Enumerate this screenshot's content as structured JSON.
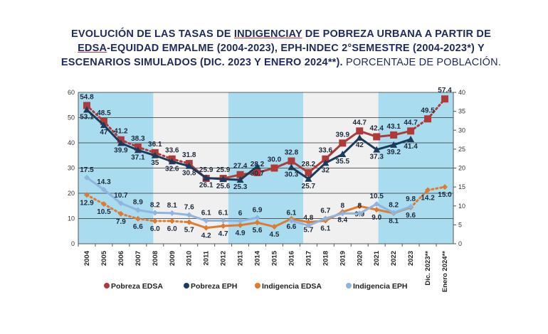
{
  "title": {
    "line1": "EVOLUCIÓN DE LAS TASAS DE ",
    "line1_u": "INDIGENCIAY",
    "line1_rest": " DE POBREZA URBANA A PARTIR DE",
    "line2_u": "EDSA",
    "line2_rest": "-EQUIDAD EMPALME (2004-2023), EPH-INDEC 2°SEMESTRE (2004-2023*) Y",
    "line3": "ESCENARIOS SIMULADOS (DIC. 2023 Y ENERO 2024**).",
    "line3_light": " PORCENTAJE DE POBLACIÓN."
  },
  "chart_data": {
    "type": "line",
    "categories": [
      "2004",
      "2005",
      "2006",
      "2007",
      "2008",
      "2009",
      "2010",
      "2011",
      "2012",
      "2013",
      "2014",
      "2015",
      "2016",
      "2017",
      "2018",
      "2019",
      "2020",
      "2021",
      "2022",
      "2023",
      "Dic. 2023**",
      "Enero 2024**"
    ],
    "y_left": {
      "range": [
        0,
        60
      ],
      "ticks": [
        0,
        10,
        20,
        30,
        40,
        50,
        60
      ],
      "series": [
        "Pobreza EDSA",
        "Pobreza EPH"
      ]
    },
    "y_right": {
      "range": [
        0,
        40
      ],
      "ticks": [
        0,
        5,
        10,
        15,
        20,
        25,
        30,
        35,
        40
      ],
      "series": [
        "Indigencia EDSA",
        "Indigencia EPH"
      ]
    },
    "grid": true,
    "legend": "bottom",
    "series": [
      {
        "name": "Pobreza EDSA",
        "axis": "left",
        "color": "#b03a3a",
        "marker": "square",
        "values": [
          54.8,
          48.5,
          41.2,
          38.3,
          36.1,
          33.6,
          31.8,
          25.9,
          25.9,
          27.4,
          28.2,
          30.0,
          32.8,
          28.2,
          33.6,
          39.9,
          44.7,
          42.4,
          43.1,
          44.7,
          49.5,
          57.4
        ]
      },
      {
        "name": "Pobreza EPH",
        "axis": "left",
        "color": "#1b3a5c",
        "marker": "triangle",
        "values": [
          53.1,
          47,
          39.9,
          37.1,
          35,
          32.6,
          30.8,
          26.1,
          25.6,
          25.3,
          30.7,
          null,
          30.3,
          25.7,
          32,
          35.5,
          42,
          37.3,
          39.2,
          41.4,
          null,
          null
        ]
      },
      {
        "name": "Indigencia EDSA",
        "axis": "right",
        "color": "#e07a2e",
        "marker": "diamond",
        "values": [
          12.9,
          10.5,
          7.9,
          6.6,
          6.0,
          6.0,
          5.7,
          4.2,
          4.7,
          4.9,
          5.6,
          4.5,
          6.6,
          5.7,
          6.1,
          8.4,
          9.9,
          9.0,
          8.1,
          9.6,
          14.2,
          15.0
        ]
      },
      {
        "name": "Indigencia EPH",
        "axis": "right",
        "color": "#8fb4e0",
        "marker": "diamond",
        "values": [
          17.5,
          14.3,
          10.7,
          8.9,
          8.2,
          8.1,
          7.6,
          6.1,
          6.1,
          6,
          6.9,
          null,
          6.1,
          4.8,
          6.7,
          8,
          8,
          10.5,
          8.2,
          9.8,
          null,
          null
        ]
      }
    ],
    "dotted_segments": "2004-2010 and projections (Dic. 2023**, Enero 2024**)",
    "band_colors": [
      "#a9dcef",
      "#f0f0f0"
    ]
  }
}
